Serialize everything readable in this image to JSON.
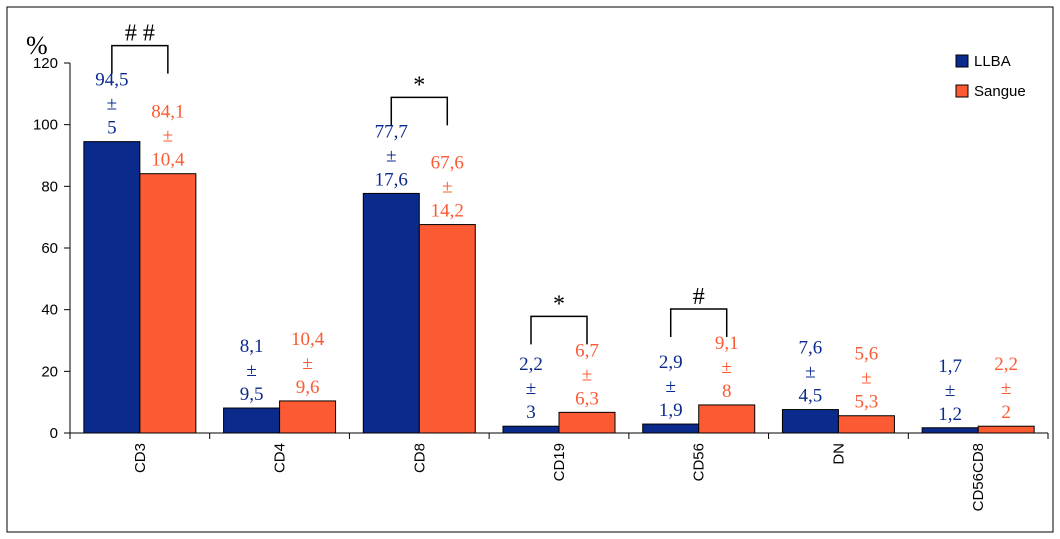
{
  "chart_data": {
    "type": "bar",
    "ylabel": "%",
    "ylim": [
      0,
      120
    ],
    "yticks": [
      0,
      20,
      40,
      60,
      80,
      100,
      120
    ],
    "grid": false,
    "legend_position": "top-right",
    "categories": [
      "CD3",
      "CD4",
      "CD8",
      "CD19",
      "CD56",
      "DN",
      "CD56CD8"
    ],
    "series": [
      {
        "name": "LLBA",
        "color": "#0a2a8c",
        "values": [
          94.5,
          8.1,
          77.7,
          2.2,
          2.9,
          7.6,
          1.7
        ],
        "mean_labels": [
          "94,5",
          "8,1",
          "77,7",
          "2,2",
          "2,9",
          "7,6",
          "1,7"
        ],
        "sd_labels": [
          "5",
          "9,5",
          "17,6",
          "3",
          "1,9",
          "4,5",
          "1,2"
        ]
      },
      {
        "name": "Sangue",
        "color": "#fb5a32",
        "values": [
          84.1,
          10.4,
          67.6,
          6.7,
          9.1,
          5.6,
          2.2
        ],
        "mean_labels": [
          "84,1",
          "10,4",
          "67,6",
          "6,7",
          "9,1",
          "5,6",
          "2,2"
        ],
        "sd_labels": [
          "10,4",
          "9,6",
          "14,2",
          "6,3",
          "8",
          "5,3",
          "2"
        ]
      }
    ],
    "pm_symbol": "±",
    "significance": [
      {
        "category": "CD3",
        "label": "# #"
      },
      {
        "category": "CD8",
        "label": "*"
      },
      {
        "category": "CD19",
        "label": "*"
      },
      {
        "category": "CD56",
        "label": "#"
      }
    ]
  }
}
